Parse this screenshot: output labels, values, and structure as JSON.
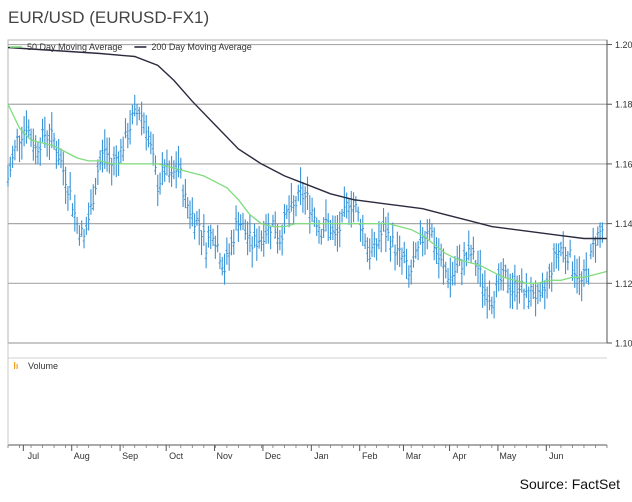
{
  "title": "EUR/USD (EURUSD-FX1)",
  "source": "Source: FactSet",
  "chart_data": {
    "type": "line",
    "legend": [
      {
        "name": "50 Day Moving Average",
        "color": "#7fdc7f"
      },
      {
        "name": "200 Day Moving Average",
        "color": "#2b2b40"
      }
    ],
    "volume_label": "Volume",
    "ylim": [
      1.1,
      1.2
    ],
    "yticks": [
      1.1,
      1.12,
      1.14,
      1.16,
      1.18,
      1.2
    ],
    "ytick_labels": [
      "1.10",
      "1.12",
      "1.14",
      "1.16",
      "1.18",
      "1.20"
    ],
    "xlim": [
      0,
      260
    ],
    "months": [
      {
        "label": "Jul",
        "x": 11
      },
      {
        "label": "Aug",
        "x": 32
      },
      {
        "label": "Sep",
        "x": 53
      },
      {
        "label": "Oct",
        "x": 73
      },
      {
        "label": "Nov",
        "x": 94
      },
      {
        "label": "Dec",
        "x": 115
      },
      {
        "label": "Jan",
        "x": 136
      },
      {
        "label": "Feb",
        "x": 157
      },
      {
        "label": "Mar",
        "x": 176
      },
      {
        "label": "Apr",
        "x": 196
      },
      {
        "label": "May",
        "x": 217
      },
      {
        "label": "Jun",
        "x": 238
      }
    ],
    "price_path": [
      [
        0,
        1.155
      ],
      [
        4,
        1.168
      ],
      [
        8,
        1.173
      ],
      [
        12,
        1.165
      ],
      [
        16,
        1.17
      ],
      [
        20,
        1.168
      ],
      [
        24,
        1.158
      ],
      [
        27,
        1.15
      ],
      [
        30,
        1.14
      ],
      [
        33,
        1.135
      ],
      [
        36,
        1.145
      ],
      [
        39,
        1.158
      ],
      [
        42,
        1.165
      ],
      [
        45,
        1.16
      ],
      [
        48,
        1.163
      ],
      [
        51,
        1.168
      ],
      [
        54,
        1.175
      ],
      [
        57,
        1.178
      ],
      [
        60,
        1.173
      ],
      [
        62,
        1.165
      ],
      [
        65,
        1.153
      ],
      [
        68,
        1.158
      ],
      [
        71,
        1.155
      ],
      [
        74,
        1.16
      ],
      [
        77,
        1.148
      ],
      [
        80,
        1.143
      ],
      [
        83,
        1.14
      ],
      [
        86,
        1.133
      ],
      [
        89,
        1.138
      ],
      [
        92,
        1.13
      ],
      [
        94,
        1.125
      ],
      [
        97,
        1.133
      ],
      [
        100,
        1.142
      ],
      [
        103,
        1.137
      ],
      [
        106,
        1.133
      ],
      [
        109,
        1.135
      ],
      [
        112,
        1.138
      ],
      [
        115,
        1.14
      ],
      [
        118,
        1.135
      ],
      [
        121,
        1.143
      ],
      [
        124,
        1.145
      ],
      [
        127,
        1.15
      ],
      [
        130,
        1.148
      ],
      [
        133,
        1.143
      ],
      [
        136,
        1.138
      ],
      [
        139,
        1.14
      ],
      [
        142,
        1.135
      ],
      [
        145,
        1.14
      ],
      [
        148,
        1.148
      ],
      [
        151,
        1.145
      ],
      [
        154,
        1.138
      ],
      [
        157,
        1.13
      ],
      [
        160,
        1.133
      ],
      [
        163,
        1.138
      ],
      [
        166,
        1.135
      ],
      [
        169,
        1.13
      ],
      [
        172,
        1.128
      ],
      [
        174,
        1.122
      ],
      [
        177,
        1.128
      ],
      [
        180,
        1.135
      ],
      [
        183,
        1.14
      ],
      [
        186,
        1.13
      ],
      [
        189,
        1.125
      ],
      [
        192,
        1.122
      ],
      [
        195,
        1.125
      ],
      [
        198,
        1.128
      ],
      [
        201,
        1.13
      ],
      [
        204,
        1.125
      ],
      [
        207,
        1.118
      ],
      [
        210,
        1.115
      ],
      [
        213,
        1.12
      ],
      [
        216,
        1.122
      ],
      [
        219,
        1.118
      ],
      [
        222,
        1.12
      ],
      [
        225,
        1.115
      ],
      [
        228,
        1.118
      ],
      [
        231,
        1.113
      ],
      [
        234,
        1.12
      ],
      [
        237,
        1.128
      ],
      [
        240,
        1.132
      ],
      [
        243,
        1.13
      ],
      [
        246,
        1.125
      ],
      [
        249,
        1.12
      ],
      [
        252,
        1.125
      ],
      [
        255,
        1.135
      ],
      [
        258,
        1.138
      ]
    ],
    "ma50": [
      [
        0,
        1.18
      ],
      [
        5,
        1.172
      ],
      [
        10,
        1.168
      ],
      [
        15,
        1.167
      ],
      [
        20,
        1.166
      ],
      [
        25,
        1.164
      ],
      [
        30,
        1.162
      ],
      [
        35,
        1.161
      ],
      [
        40,
        1.161
      ],
      [
        45,
        1.16
      ],
      [
        50,
        1.16
      ],
      [
        55,
        1.16
      ],
      [
        60,
        1.16
      ],
      [
        65,
        1.16
      ],
      [
        70,
        1.159
      ],
      [
        75,
        1.158
      ],
      [
        80,
        1.157
      ],
      [
        85,
        1.156
      ],
      [
        90,
        1.154
      ],
      [
        95,
        1.152
      ],
      [
        100,
        1.148
      ],
      [
        105,
        1.143
      ],
      [
        110,
        1.14
      ],
      [
        115,
        1.139
      ],
      [
        120,
        1.139
      ],
      [
        125,
        1.14
      ],
      [
        130,
        1.14
      ],
      [
        135,
        1.14
      ],
      [
        140,
        1.14
      ],
      [
        145,
        1.14
      ],
      [
        150,
        1.14
      ],
      [
        155,
        1.14
      ],
      [
        160,
        1.14
      ],
      [
        165,
        1.14
      ],
      [
        170,
        1.139
      ],
      [
        175,
        1.138
      ],
      [
        180,
        1.136
      ],
      [
        185,
        1.133
      ],
      [
        190,
        1.13
      ],
      [
        195,
        1.128
      ],
      [
        200,
        1.127
      ],
      [
        205,
        1.126
      ],
      [
        210,
        1.124
      ],
      [
        215,
        1.122
      ],
      [
        220,
        1.121
      ],
      [
        225,
        1.12
      ],
      [
        230,
        1.12
      ],
      [
        235,
        1.121
      ],
      [
        240,
        1.121
      ],
      [
        245,
        1.122
      ],
      [
        250,
        1.122
      ],
      [
        255,
        1.123
      ],
      [
        260,
        1.124
      ]
    ],
    "ma200": [
      [
        0,
        1.199
      ],
      [
        20,
        1.198
      ],
      [
        40,
        1.197
      ],
      [
        55,
        1.196
      ],
      [
        65,
        1.193
      ],
      [
        72,
        1.188
      ],
      [
        80,
        1.181
      ],
      [
        90,
        1.173
      ],
      [
        100,
        1.165
      ],
      [
        110,
        1.16
      ],
      [
        120,
        1.156
      ],
      [
        130,
        1.153
      ],
      [
        140,
        1.15
      ],
      [
        150,
        1.148
      ],
      [
        160,
        1.147
      ],
      [
        170,
        1.146
      ],
      [
        180,
        1.145
      ],
      [
        190,
        1.143
      ],
      [
        200,
        1.141
      ],
      [
        210,
        1.139
      ],
      [
        220,
        1.138
      ],
      [
        230,
        1.137
      ],
      [
        240,
        1.136
      ],
      [
        250,
        1.135
      ],
      [
        260,
        1.135
      ]
    ]
  }
}
